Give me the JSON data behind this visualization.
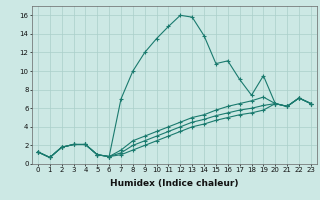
{
  "xlabel": "Humidex (Indice chaleur)",
  "ylabel": "",
  "bg_color": "#cce8e4",
  "line_color": "#1a7a6e",
  "grid_color": "#aacfca",
  "xlim": [
    -0.5,
    23.5
  ],
  "ylim": [
    0,
    17
  ],
  "xticks": [
    0,
    1,
    2,
    3,
    4,
    5,
    6,
    7,
    8,
    9,
    10,
    11,
    12,
    13,
    14,
    15,
    16,
    17,
    18,
    19,
    20,
    21,
    22,
    23
  ],
  "yticks": [
    0,
    2,
    4,
    6,
    8,
    10,
    12,
    14,
    16
  ],
  "series": [
    [
      1.3,
      0.7,
      1.8,
      2.1,
      2.1,
      1.0,
      0.8,
      7.0,
      10.0,
      12.0,
      13.5,
      14.8,
      16.0,
      15.8,
      13.8,
      10.8,
      11.1,
      9.1,
      7.4,
      9.5,
      6.5,
      6.2,
      7.1,
      6.5
    ],
    [
      1.3,
      0.7,
      1.8,
      2.1,
      2.1,
      1.0,
      0.8,
      1.5,
      2.5,
      3.0,
      3.5,
      4.0,
      4.5,
      5.0,
      5.3,
      5.8,
      6.2,
      6.5,
      6.8,
      7.2,
      6.5,
      6.2,
      7.1,
      6.5
    ],
    [
      1.3,
      0.7,
      1.8,
      2.1,
      2.1,
      1.0,
      0.8,
      1.2,
      2.0,
      2.5,
      3.0,
      3.5,
      4.0,
      4.5,
      4.8,
      5.2,
      5.5,
      5.8,
      6.0,
      6.3,
      6.5,
      6.2,
      7.1,
      6.5
    ],
    [
      1.3,
      0.7,
      1.8,
      2.1,
      2.1,
      1.0,
      0.8,
      1.0,
      1.5,
      2.0,
      2.5,
      3.0,
      3.5,
      4.0,
      4.3,
      4.7,
      5.0,
      5.3,
      5.5,
      5.8,
      6.5,
      6.2,
      7.1,
      6.5
    ]
  ],
  "xlabel_fontsize": 6.5,
  "tick_fontsize": 5.0
}
